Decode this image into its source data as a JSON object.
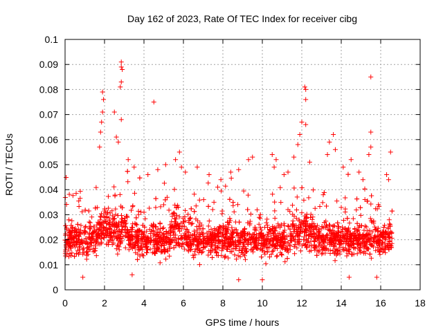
{
  "chart_data": {
    "type": "scatter",
    "title": "Day 162 of 2023, Rate Of TEC Index for receiver cibg",
    "xlabel": "GPS time / hours",
    "ylabel": "ROTI / TECUs",
    "xlim": [
      0,
      18
    ],
    "ylim": [
      0,
      0.1
    ],
    "x_ticks": [
      0,
      2,
      4,
      6,
      8,
      10,
      12,
      14,
      16,
      18
    ],
    "y_ticks": [
      0,
      0.01,
      0.02,
      0.03,
      0.04,
      0.05,
      0.06,
      0.07,
      0.08,
      0.09,
      0.1
    ],
    "x_tick_labels": [
      "0",
      "2",
      "4",
      "6",
      "8",
      "10",
      "12",
      "14",
      "16",
      "18"
    ],
    "y_tick_labels": [
      "0",
      "0.01",
      "0.02",
      "0.03",
      "0.04",
      "0.05",
      "0.06",
      "0.07",
      "0.08",
      "0.09",
      "0.1"
    ],
    "grid": true,
    "marker": "+",
    "series_color": "#ff0000",
    "series": [
      {
        "name": "ROTI",
        "x_range": [
          0.0,
          16.6
        ],
        "typical_range": [
          0.01,
          0.03
        ],
        "note_values": "dense cloud of several thousand points; individual outliers listed below",
        "points": [
          [
            1.9,
            0.079
          ],
          [
            1.95,
            0.076
          ],
          [
            1.9,
            0.071
          ],
          [
            1.85,
            0.067
          ],
          [
            1.8,
            0.063
          ],
          [
            1.75,
            0.057
          ],
          [
            2.85,
            0.091
          ],
          [
            2.85,
            0.089
          ],
          [
            2.9,
            0.088
          ],
          [
            2.85,
            0.083
          ],
          [
            2.8,
            0.081
          ],
          [
            2.85,
            0.068
          ],
          [
            2.5,
            0.071
          ],
          [
            2.6,
            0.061
          ],
          [
            2.7,
            0.059
          ],
          [
            4.5,
            0.075
          ],
          [
            12.15,
            0.081
          ],
          [
            12.2,
            0.08
          ],
          [
            12.2,
            0.076
          ],
          [
            12.0,
            0.067
          ],
          [
            12.2,
            0.066
          ],
          [
            11.9,
            0.062
          ],
          [
            15.5,
            0.085
          ],
          [
            15.5,
            0.063
          ],
          [
            15.5,
            0.057
          ],
          [
            15.4,
            0.054
          ],
          [
            16.5,
            0.055
          ],
          [
            13.4,
            0.059
          ],
          [
            13.6,
            0.062
          ],
          [
            13.7,
            0.056
          ],
          [
            14.5,
            0.052
          ],
          [
            13.3,
            0.054
          ],
          [
            5.8,
            0.055
          ],
          [
            5.6,
            0.052
          ],
          [
            5.9,
            0.049
          ],
          [
            6.1,
            0.047
          ],
          [
            9.5,
            0.053
          ],
          [
            9.3,
            0.052
          ],
          [
            10.5,
            0.054
          ],
          [
            10.7,
            0.052
          ],
          [
            10.6,
            0.049
          ],
          [
            11.6,
            0.053
          ],
          [
            11.8,
            0.058
          ],
          [
            12.4,
            0.051
          ],
          [
            3.2,
            0.052
          ],
          [
            3.5,
            0.049
          ],
          [
            4.2,
            0.046
          ],
          [
            4.7,
            0.048
          ],
          [
            5.1,
            0.05
          ],
          [
            6.7,
            0.049
          ],
          [
            7.3,
            0.046
          ],
          [
            7.9,
            0.044
          ],
          [
            8.4,
            0.047
          ],
          [
            8.8,
            0.048
          ],
          [
            11.1,
            0.046
          ],
          [
            11.3,
            0.047
          ],
          [
            14.9,
            0.047
          ],
          [
            14.1,
            0.049
          ],
          [
            15.1,
            0.044
          ],
          [
            16.3,
            0.046
          ],
          [
            16.4,
            0.044
          ],
          [
            8.8,
            0.004
          ],
          [
            10.0,
            0.004
          ],
          [
            0.9,
            0.005
          ],
          [
            3.4,
            0.006
          ],
          [
            14.4,
            0.005
          ],
          [
            15.8,
            0.005
          ]
        ]
      }
    ]
  }
}
